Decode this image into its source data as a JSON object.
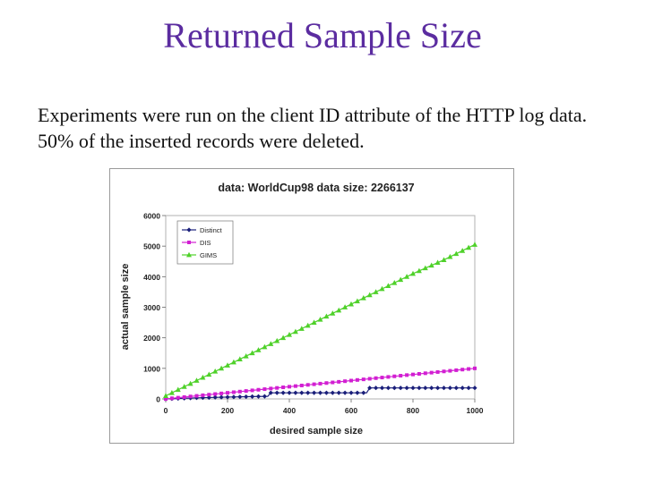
{
  "slide": {
    "title": "Returned Sample Size",
    "body": "Experiments were run on the client ID attribute of the HTTP log data. 50% of the inserted records were deleted."
  },
  "chart_data": {
    "type": "line",
    "title": "data: WorldCup98 data size: 2266137",
    "xlabel": "desired sample size",
    "ylabel": "actual sample size",
    "xlim": [
      0,
      1000
    ],
    "ylim": [
      0,
      6000
    ],
    "xticks": [
      "0",
      "200",
      "400",
      "600",
      "800",
      "1000"
    ],
    "yticks": [
      "0",
      "1000",
      "2000",
      "3000",
      "4000",
      "5000",
      "6000"
    ],
    "grid": false,
    "legend_position": "top-left",
    "x": [
      0,
      100,
      200,
      300,
      330,
      340,
      400,
      500,
      600,
      650,
      660,
      700,
      800,
      900,
      1000
    ],
    "series": [
      {
        "name": "Distinct",
        "color": "#1a1f7a",
        "marker": "diamond",
        "values": [
          0,
          35,
          60,
          80,
          85,
          200,
          200,
          200,
          200,
          200,
          360,
          360,
          360,
          360,
          360
        ]
      },
      {
        "name": "DIS",
        "color": "#d21fd2",
        "marker": "square",
        "values": [
          0,
          100,
          200,
          300,
          330,
          340,
          400,
          500,
          600,
          650,
          660,
          700,
          800,
          900,
          1000
        ]
      },
      {
        "name": "GIMS",
        "color": "#4fd12a",
        "marker": "triangle",
        "values": [
          100,
          600,
          1100,
          1600,
          1750,
          1800,
          2100,
          2600,
          3100,
          3350,
          3400,
          3600,
          4100,
          4550,
          5050
        ]
      }
    ]
  }
}
